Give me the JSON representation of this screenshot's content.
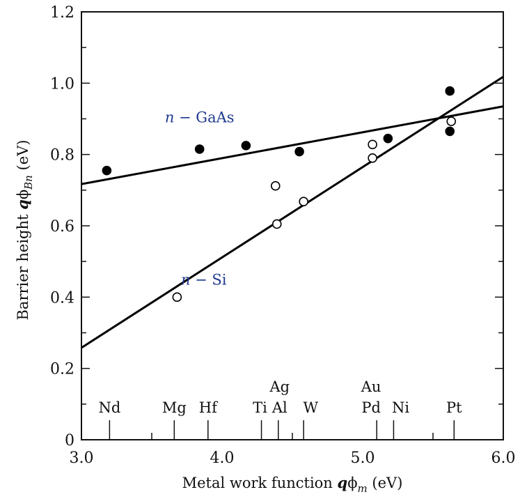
{
  "chart_data": {
    "type": "scatter",
    "xlabel": {
      "prefix": "Metal work function ",
      "q": "q",
      "phi": "ϕ",
      "sub": "m",
      "suffix": " (eV)"
    },
    "ylabel": {
      "prefix": "Barrier height ",
      "q": "q",
      "phi": "ϕ",
      "sub": "Bn",
      "suffix": " (eV)"
    },
    "xlim": [
      3.0,
      6.0
    ],
    "ylim": [
      0,
      1.2
    ],
    "x_ticks": [
      3.0,
      4.0,
      5.0,
      6.0
    ],
    "x_tick_labels": [
      "3.0",
      "4.0",
      "5.0",
      "6.0"
    ],
    "x_minor_ticks": [
      3.5,
      4.5,
      5.5
    ],
    "y_ticks": [
      0,
      0.2,
      0.4,
      0.6,
      0.8,
      1.0,
      1.2
    ],
    "y_tick_labels": [
      "0",
      "0.2",
      "0.4",
      "0.6",
      "0.8",
      "1.0",
      "1.2"
    ],
    "y_minor_ticks": [
      0.1,
      0.3,
      0.5,
      0.7,
      0.9,
      1.1
    ],
    "grid": false,
    "series": [
      {
        "name": "n − GaAs",
        "label_parts": {
          "italic": "n",
          "rest": " − GaAs"
        },
        "marker": "filled-circle",
        "color": "#000000",
        "label_color": "#1f3a8f",
        "label_at": [
          3.84,
          0.89
        ],
        "points": [
          [
            3.18,
            0.755
          ],
          [
            3.84,
            0.815
          ],
          [
            4.17,
            0.825
          ],
          [
            4.55,
            0.808
          ],
          [
            5.18,
            0.845
          ],
          [
            5.62,
            0.978
          ],
          [
            5.62,
            0.865
          ]
        ],
        "fit_line": [
          [
            3.0,
            0.717
          ],
          [
            6.0,
            0.935
          ]
        ]
      },
      {
        "name": "n − Si",
        "label_parts": {
          "italic": "n",
          "rest": " − Si"
        },
        "marker": "open-circle",
        "color": "#000000",
        "label_color": "#1f3a8f",
        "label_at": [
          3.87,
          0.435
        ],
        "points": [
          [
            3.68,
            0.4
          ],
          [
            4.38,
            0.712
          ],
          [
            4.39,
            0.605
          ],
          [
            4.58,
            0.668
          ],
          [
            5.07,
            0.828
          ],
          [
            5.07,
            0.79
          ],
          [
            5.63,
            0.893
          ]
        ],
        "fit_line": [
          [
            3.0,
            0.258
          ],
          [
            6.0,
            1.018
          ]
        ]
      }
    ],
    "metal_markers": [
      {
        "name": "Nd",
        "x": 3.2,
        "upper": ""
      },
      {
        "name": "Mg",
        "x": 3.66,
        "upper": ""
      },
      {
        "name": "Hf",
        "x": 3.9,
        "upper": ""
      },
      {
        "name": "Ti",
        "x": 4.33,
        "upper": ""
      },
      {
        "name": "Al",
        "x": 4.28,
        "upper": "Ag"
      },
      {
        "name": "W",
        "x": 4.55,
        "upper": ""
      },
      {
        "name": "Pd",
        "x": 5.12,
        "upper": "Au"
      },
      {
        "name": "Ni",
        "x": 5.15,
        "upper": ""
      },
      {
        "name": "Pt",
        "x": 5.65,
        "upper": ""
      }
    ],
    "metal_tick_xs": [
      3.2,
      3.66,
      3.9,
      4.28,
      4.4,
      4.58,
      5.1,
      5.22,
      5.65
    ]
  }
}
